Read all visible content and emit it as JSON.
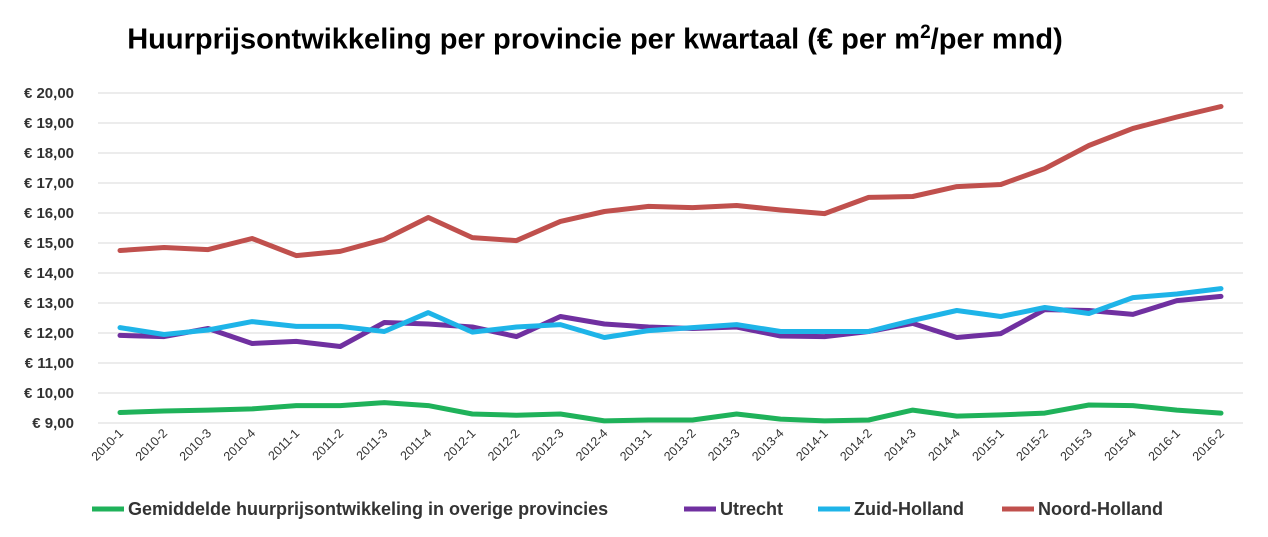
{
  "chart_data": {
    "type": "line",
    "title_main": "Huurprijsontwikkeling per provincie per kwartaal (€ per m",
    "title_sup": "2",
    "title_tail": "/per mnd)",
    "ylim": [
      9,
      20
    ],
    "ytick_values": [
      9,
      10,
      11,
      12,
      13,
      14,
      15,
      16,
      17,
      18,
      19,
      20
    ],
    "ytick_labels": [
      "€ 9,00",
      "€ 10,00",
      "€ 11,00",
      "€ 12,00",
      "€ 13,00",
      "€ 14,00",
      "€ 15,00",
      "€ 16,00",
      "€ 17,00",
      "€ 18,00",
      "€ 19,00",
      "€ 20,00"
    ],
    "grid": true,
    "legend_position": "bottom",
    "categories": [
      "2010-1",
      "2010-2",
      "2010-3",
      "2010-4",
      "2011-1",
      "2011-2",
      "2011-3",
      "2011-4",
      "2012-1",
      "2012-2",
      "2012-3",
      "2012-4",
      "2013-1",
      "2013-2",
      "2013-3",
      "2013-4",
      "2014-1",
      "2014-2",
      "2014-3",
      "2014-4",
      "2015-1",
      "2015-2",
      "2015-3",
      "2015-4",
      "2016-1",
      "2016-2"
    ],
    "series": [
      {
        "name": "Gemiddelde huurprijsontwikkeling in overige provincies",
        "color": "#1fb25a",
        "values": [
          9.35,
          9.4,
          9.43,
          9.47,
          9.58,
          9.58,
          9.68,
          9.58,
          9.3,
          9.26,
          9.3,
          9.07,
          9.1,
          9.1,
          9.3,
          9.13,
          9.07,
          9.1,
          9.43,
          9.23,
          9.27,
          9.33,
          9.6,
          9.58,
          9.43,
          9.33
        ]
      },
      {
        "name": "Utrecht",
        "color": "#7030a0",
        "values": [
          11.92,
          11.88,
          12.15,
          11.65,
          11.72,
          11.55,
          12.35,
          12.3,
          12.2,
          11.88,
          12.55,
          12.3,
          12.2,
          12.15,
          12.2,
          11.9,
          11.88,
          12.05,
          12.32,
          11.85,
          11.98,
          12.78,
          12.75,
          12.62,
          13.08,
          13.22
        ]
      },
      {
        "name": "Zuid-Holland",
        "color": "#1eb4e8",
        "values": [
          12.18,
          11.95,
          12.1,
          12.38,
          12.22,
          12.22,
          12.05,
          12.68,
          12.03,
          12.2,
          12.28,
          11.85,
          12.08,
          12.18,
          12.28,
          12.05,
          12.05,
          12.05,
          12.42,
          12.75,
          12.55,
          12.85,
          12.65,
          13.18,
          13.3,
          13.48
        ]
      },
      {
        "name": "Noord-Holland",
        "color": "#c0504d",
        "values": [
          14.75,
          14.85,
          14.78,
          15.15,
          14.58,
          14.72,
          15.12,
          15.85,
          15.18,
          15.08,
          15.72,
          16.05,
          16.22,
          16.18,
          16.25,
          16.1,
          15.98,
          16.52,
          16.55,
          16.88,
          16.95,
          17.48,
          18.25,
          18.82,
          19.2,
          19.55
        ]
      }
    ]
  }
}
